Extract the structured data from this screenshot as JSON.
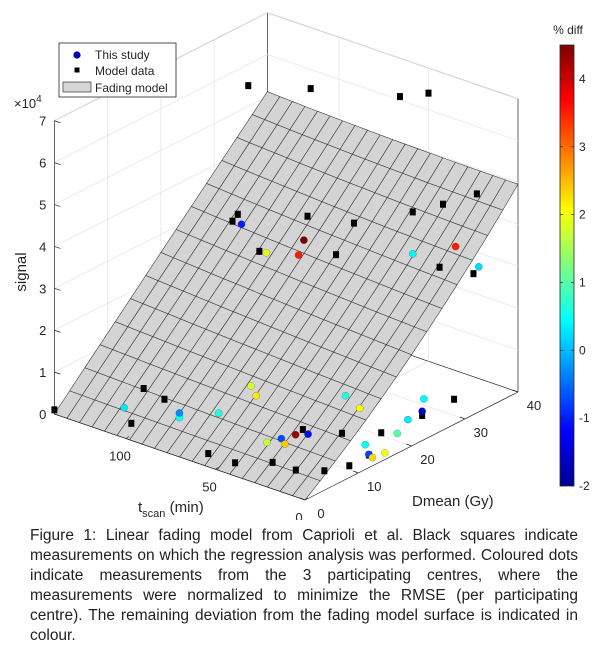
{
  "chart_data": {
    "type": "scatter",
    "subtype": "3d-surface-with-points",
    "ylabel": "signal",
    "exponent_label": "×10",
    "exponent_power": "4",
    "xlabel_main": "t",
    "xlabel_sub": "scan",
    "xlabel_unit": " (min)",
    "zlabel": "Dmean (Gy)",
    "colorbar_title": "% diff",
    "signal_ticks": [
      "0",
      "1",
      "2",
      "3",
      "4",
      "5",
      "6",
      "7"
    ],
    "t_ticks": [
      "100",
      "50",
      "0"
    ],
    "dose_ticks": [
      "0",
      "10",
      "20",
      "30",
      "40"
    ],
    "colorbar_ticks": [
      "4",
      "3",
      "2",
      "1",
      "0",
      "-1",
      "-2"
    ],
    "colorbar_range": [
      -2,
      4.5
    ],
    "t_range": [
      0,
      140
    ],
    "dose_range": [
      0,
      40
    ],
    "signal_range": [
      0,
      7
    ],
    "legend": [
      {
        "label": "This study",
        "marker": "circle"
      },
      {
        "label": "Model data",
        "marker": "square"
      },
      {
        "label": "Fading model",
        "marker": "patch"
      }
    ],
    "model_data": [
      {
        "t": 140,
        "d": 0,
        "s": 0.1
      },
      {
        "t": 100,
        "d": 1,
        "s": 0.3
      },
      {
        "t": 80,
        "d": 0.5,
        "s": 1.2
      },
      {
        "t": 60,
        "d": 2,
        "s": 0.1
      },
      {
        "t": 45,
        "d": 2,
        "s": 0.1
      },
      {
        "t": 30,
        "d": 4,
        "s": 0.2
      },
      {
        "t": 20,
        "d": 5,
        "s": 0.1
      },
      {
        "t": 10,
        "d": 7,
        "s": 0.1
      },
      {
        "t": 5,
        "d": 10,
        "s": 0.1
      },
      {
        "t": 0,
        "d": 12,
        "s": 0.3
      },
      {
        "t": 25,
        "d": 8,
        "s": 0.8
      },
      {
        "t": 15,
        "d": 12,
        "s": 0.6
      },
      {
        "t": 5,
        "d": 16,
        "s": 0.5
      },
      {
        "t": 0,
        "d": 22,
        "s": 0.6
      },
      {
        "t": 0,
        "d": 28,
        "s": 0.6
      },
      {
        "t": 105,
        "d": 5,
        "s": 0.8
      },
      {
        "t": 100,
        "d": 20,
        "s": 3.9
      },
      {
        "t": 100,
        "d": 21,
        "s": 4.0
      },
      {
        "t": 70,
        "d": 24,
        "s": 4.2
      },
      {
        "t": 50,
        "d": 26,
        "s": 4.2
      },
      {
        "t": 35,
        "d": 32,
        "s": 4.3
      },
      {
        "t": 30,
        "d": 36,
        "s": 4.3
      },
      {
        "t": 20,
        "d": 39,
        "s": 4.5
      },
      {
        "t": 85,
        "d": 20,
        "s": 3.4
      },
      {
        "t": 60,
        "d": 26,
        "s": 3.3
      },
      {
        "t": 20,
        "d": 32,
        "s": 3.2
      },
      {
        "t": 10,
        "d": 35,
        "s": 3.0
      },
      {
        "t": 115,
        "d": 28,
        "s": 6.4
      },
      {
        "t": 95,
        "d": 33,
        "s": 6.3
      },
      {
        "t": 60,
        "d": 38,
        "s": 6.3
      },
      {
        "t": 50,
        "d": 40,
        "s": 6.4
      }
    ],
    "this_study": [
      {
        "t": 110,
        "d": 3,
        "s": 0.4,
        "diff": 0.3
      },
      {
        "t": 85,
        "d": 5,
        "s": 0.4,
        "diff": 0.5
      },
      {
        "t": 88,
        "d": 6,
        "s": 0.4,
        "diff": -0.3
      },
      {
        "t": 72,
        "d": 8,
        "s": 0.5,
        "diff": 0.6
      },
      {
        "t": 60,
        "d": 10,
        "s": 1.2,
        "diff": 1.8
      },
      {
        "t": 60,
        "d": 11,
        "s": 0.9,
        "diff": 2.2
      },
      {
        "t": 45,
        "d": 8,
        "s": 0.2,
        "diff": 1.7
      },
      {
        "t": 40,
        "d": 9,
        "s": 0.3,
        "diff": -0.7
      },
      {
        "t": 38,
        "d": 9,
        "s": 0.2,
        "diff": 2.4
      },
      {
        "t": 35,
        "d": 10,
        "s": 0.4,
        "diff": 4.3
      },
      {
        "t": 34,
        "d": 12,
        "s": 0.3,
        "diff": -1.1
      },
      {
        "t": 22,
        "d": 15,
        "s": 1.2,
        "diff": 0.7
      },
      {
        "t": 20,
        "d": 17,
        "s": 0.8,
        "diff": 2.0
      },
      {
        "t": 8,
        "d": 14,
        "s": 0.3,
        "diff": 0.5
      },
      {
        "t": 6,
        "d": 14,
        "s": 0.1,
        "diff": -0.8
      },
      {
        "t": 4,
        "d": 14,
        "s": 0.05,
        "diff": 2.3
      },
      {
        "t": 3,
        "d": 16,
        "s": 0.05,
        "diff": 2.0
      },
      {
        "t": 2,
        "d": 18,
        "s": 0.4,
        "diff": 1.0
      },
      {
        "t": 2,
        "d": 20,
        "s": 0.6,
        "diff": 0.3
      },
      {
        "t": 0,
        "d": 22,
        "s": 0.7,
        "diff": -1.5
      },
      {
        "t": 2,
        "d": 23,
        "s": 0.9,
        "diff": 0.4
      },
      {
        "t": 95,
        "d": 20,
        "s": 3.9,
        "diff": -1.0
      },
      {
        "t": 90,
        "d": 23,
        "s": 3.1,
        "diff": 1.9
      },
      {
        "t": 75,
        "d": 24,
        "s": 3.2,
        "diff": 3.5
      },
      {
        "t": 72,
        "d": 24,
        "s": 3.6,
        "diff": 4.6
      },
      {
        "t": 35,
        "d": 32,
        "s": 3.3,
        "diff": 0.4
      },
      {
        "t": 20,
        "d": 35,
        "s": 3.5,
        "diff": 3.5
      },
      {
        "t": 10,
        "d": 36,
        "s": 3.1,
        "diff": 0.2
      }
    ]
  },
  "caption": "Figure 1: Linear fading model from Caprioli et al. Black squares indicate measurements on which the regression analysis was performed. Coloured dots indicate measurements from the 3 participating centres, where the measurements were normalized to minimize the RMSE (per participating centre). The remaining deviation from the fading model surface is indicated in colour."
}
